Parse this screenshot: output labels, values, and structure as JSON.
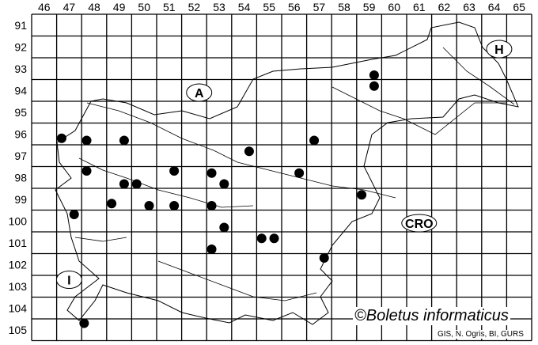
{
  "map": {
    "columns": [
      "46",
      "47",
      "48",
      "49",
      "50",
      "51",
      "52",
      "53",
      "54",
      "55",
      "56",
      "57",
      "58",
      "59",
      "60",
      "61",
      "62",
      "63",
      "64",
      "65"
    ],
    "rows": [
      "91",
      "92",
      "93",
      "94",
      "95",
      "96",
      "97",
      "98",
      "99",
      "100",
      "101",
      "102",
      "103",
      "104",
      "105"
    ],
    "country_labels": [
      {
        "text": "A",
        "col": 52.7,
        "row": 94.6
      },
      {
        "text": "H",
        "col": 64.7,
        "row": 92.6
      },
      {
        "text": "CRO",
        "col": 61.5,
        "row": 100.6
      },
      {
        "text": "I",
        "col": 47.5,
        "row": 103.2
      }
    ],
    "records": [
      [
        47.2,
        96.7
      ],
      [
        48.2,
        96.8
      ],
      [
        49.7,
        96.8
      ],
      [
        54.7,
        97.3
      ],
      [
        57.3,
        96.8
      ],
      [
        59.7,
        93.8
      ],
      [
        59.7,
        94.3
      ],
      [
        48.2,
        98.2
      ],
      [
        49.7,
        98.8
      ],
      [
        50.2,
        98.8
      ],
      [
        51.7,
        98.2
      ],
      [
        53.2,
        98.3
      ],
      [
        53.7,
        98.8
      ],
      [
        56.7,
        98.3
      ],
      [
        49.2,
        99.7
      ],
      [
        50.7,
        99.8
      ],
      [
        51.7,
        99.8
      ],
      [
        53.2,
        99.8
      ],
      [
        59.2,
        99.3
      ],
      [
        47.7,
        100.2
      ],
      [
        53.7,
        100.8
      ],
      [
        55.2,
        101.3
      ],
      [
        55.7,
        101.3
      ],
      [
        53.2,
        101.8
      ],
      [
        57.7,
        102.2
      ],
      [
        48.1,
        105.2
      ]
    ],
    "dot_color": "#000000"
  },
  "credit": "©Boletus informaticus",
  "source": "GIS, N. Ogris, BI, GURS"
}
